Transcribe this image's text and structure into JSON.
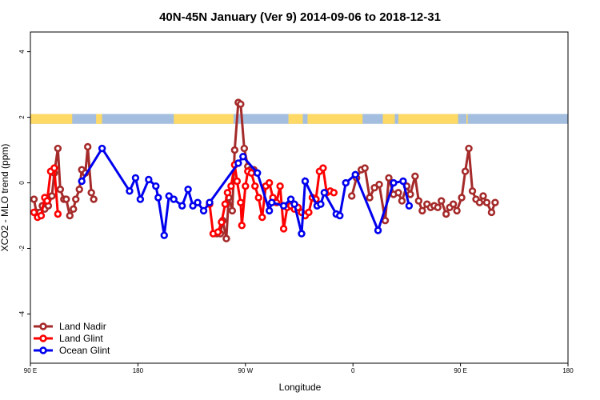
{
  "chart_data": {
    "type": "line",
    "title": "40N-45N January (Ver 9)   2014-09-06 to 2018-12-31",
    "xlabel": "Longitude",
    "ylabel": "XCO2 - MLO trend (ppm)",
    "xlim": [
      90,
      450
    ],
    "ylim": [
      -5.5,
      4.6
    ],
    "x_ticks": [
      90,
      180,
      270,
      360,
      450,
      540
    ],
    "x_tick_labels": [
      "90 E",
      "180",
      "90 W",
      "0",
      "90 E",
      "180"
    ],
    "y_ticks": [
      -4,
      -2,
      0,
      2,
      4
    ],
    "y_tick_labels": [
      "-4",
      "-2",
      "0",
      "2",
      "4"
    ],
    "grid": false,
    "legend_position": "bottom-left",
    "colors": {
      "land": "#FFD966",
      "ocean": "#A3BEDE"
    },
    "land_ocean_bar": {
      "y_range": [
        1.8,
        2.1
      ],
      "land": [
        [
          90,
          125
        ],
        [
          145,
          150
        ],
        [
          210,
          260
        ],
        [
          306,
          318
        ],
        [
          322,
          368
        ],
        [
          385,
          395
        ],
        [
          398,
          448
        ],
        [
          455,
          456
        ]
      ]
    },
    "series": [
      {
        "name": "Land Nadir",
        "color": "#A52A2A",
        "x": [
          93,
          95,
          98,
          100,
          102,
          105,
          108,
          110,
          113,
          115,
          118,
          120,
          123,
          126,
          128,
          131,
          133,
          136,
          138,
          141,
          143,
          246,
          249,
          251,
          254,
          256,
          259,
          261,
          264,
          266,
          269,
          272,
          274,
          277,
          359,
          363,
          367,
          370,
          374,
          378,
          382,
          387,
          390,
          394,
          398,
          401,
          405,
          408,
          412,
          415,
          418,
          422,
          425,
          428,
          431,
          434,
          438,
          441,
          444,
          447,
          451,
          454,
          457,
          460,
          463,
          466,
          469,
          472,
          476,
          479
        ],
        "y": [
          -0.5,
          -0.9,
          -0.9,
          -0.7,
          -0.8,
          -0.7,
          -0.4,
          0.3,
          1.05,
          -0.2,
          -0.5,
          -0.5,
          -1.0,
          -0.8,
          -0.5,
          -0.2,
          0.4,
          0.3,
          1.1,
          -0.3,
          -0.5,
          -1.55,
          -1.55,
          -1.15,
          -1.7,
          -0.45,
          -0.85,
          1.0,
          2.45,
          2.4,
          1.05,
          0.5,
          0.4,
          0.4,
          -0.4,
          0.15,
          0.4,
          0.45,
          -0.45,
          -0.15,
          -0.05,
          -1.15,
          0.15,
          -0.35,
          -0.3,
          -0.55,
          -0.1,
          -0.35,
          0.2,
          -0.55,
          -0.85,
          -0.65,
          -0.75,
          -0.7,
          -0.75,
          -0.55,
          -0.95,
          -0.75,
          -0.65,
          -0.85,
          -0.45,
          0.35,
          1.05,
          -0.25,
          -0.5,
          -0.6,
          -0.4,
          -0.6,
          -0.9,
          -0.6
        ],
        "note": ""
      },
      {
        "name": "Land Glint",
        "color": "#FF0000",
        "x": [
          93,
          96,
          99,
          102,
          104,
          107,
          110,
          113,
          240,
          243,
          247,
          250,
          253,
          255,
          258,
          261,
          263,
          266,
          267,
          270,
          272,
          275,
          278,
          281,
          284,
          287,
          290,
          293,
          296,
          299,
          302,
          305,
          308,
          311,
          314,
          317,
          320,
          323,
          326,
          329,
          332,
          335,
          338,
          341,
          344
        ],
        "y": [
          -0.9,
          -1.05,
          -1.0,
          -0.45,
          -0.55,
          0.35,
          0.45,
          -0.95,
          -0.65,
          -1.55,
          -1.5,
          -1.2,
          -0.65,
          -0.3,
          -0.1,
          0.55,
          0.05,
          -0.6,
          -1.3,
          -0.1,
          0.35,
          0.3,
          -0.1,
          -0.45,
          -1.05,
          -0.1,
          0.0,
          -0.45,
          -0.6,
          -0.1,
          -1.4,
          -0.75,
          -0.7,
          -0.8,
          -0.75,
          -0.9,
          -1.0,
          -0.9,
          -0.45,
          -0.5,
          0.35,
          0.45,
          -0.3,
          -0.25,
          -0.3
        ],
        "note": ""
      },
      {
        "name": "Ocean Glint",
        "color": "#0000EE",
        "x": [
          133,
          150,
          173,
          178,
          182,
          189,
          195,
          197,
          202,
          206,
          210,
          217,
          222,
          226,
          230,
          235,
          240,
          264,
          268,
          280,
          290,
          292,
          302,
          308,
          311,
          317,
          320,
          330,
          333,
          336,
          346,
          349,
          354,
          362,
          381,
          394,
          402,
          407
        ],
        "y": [
          0.05,
          1.05,
          -0.25,
          0.15,
          -0.5,
          0.1,
          -0.1,
          -0.45,
          -1.6,
          -0.4,
          -0.5,
          -0.7,
          -0.2,
          -0.7,
          -0.6,
          -0.85,
          -0.6,
          0.6,
          0.8,
          0.3,
          -0.85,
          -0.6,
          -0.7,
          -0.5,
          -0.65,
          -1.55,
          0.05,
          -0.7,
          -0.65,
          -0.3,
          -0.95,
          -1.0,
          0.0,
          0.25,
          -1.45,
          0.0,
          0.05,
          -0.7
        ],
        "note": ""
      }
    ]
  }
}
